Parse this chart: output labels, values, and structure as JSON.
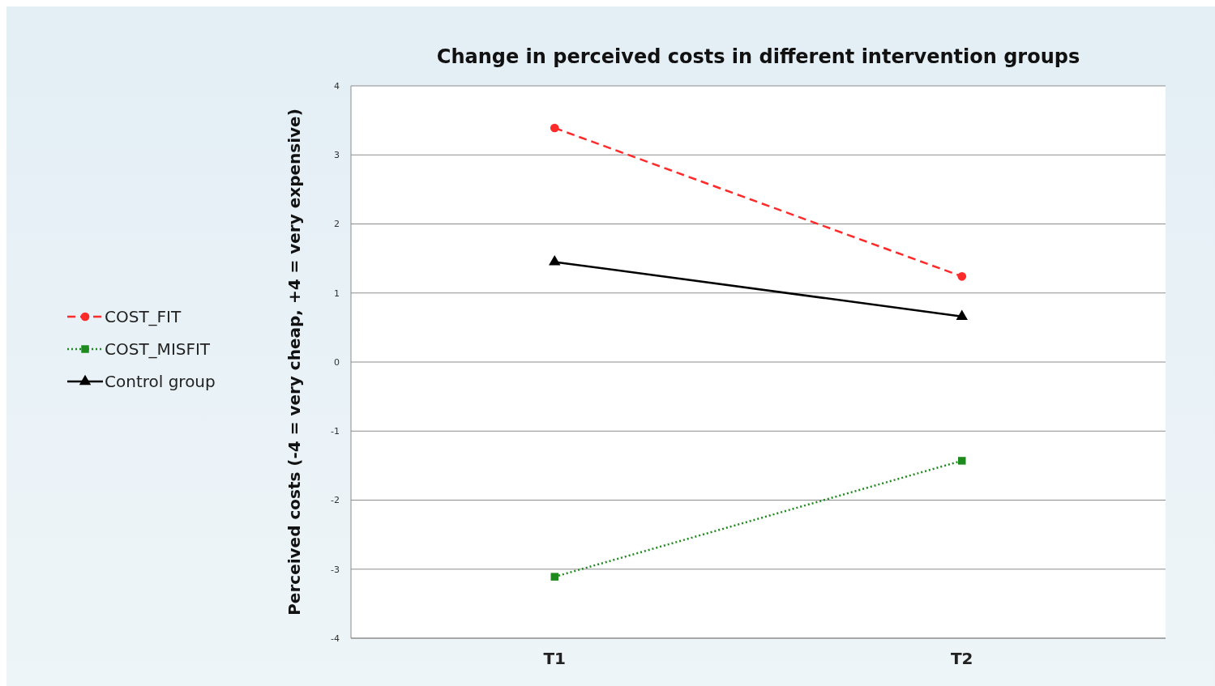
{
  "chart_data": {
    "type": "line",
    "title": "Change in perceived costs in different intervention groups",
    "ylabel": "Perceived costs (-4 = very cheap, +4 = very expensive)",
    "categories": [
      "T1",
      "T2"
    ],
    "ylim": [
      -4,
      4
    ],
    "yticks": [
      -4,
      -3,
      -2,
      -1,
      0,
      1,
      2,
      3,
      4
    ],
    "grid": "y",
    "legend": "left",
    "series": [
      {
        "name": "COST_FIT",
        "color": "#ff2a2a",
        "values": [
          3.39,
          1.24
        ],
        "marker": "circle",
        "line_style": "dashed"
      },
      {
        "name": "COST_MISFIT",
        "color": "#1e8a1e",
        "values": [
          -3.11,
          -1.43
        ],
        "marker": "square",
        "line_style": "dotted"
      },
      {
        "name": "Control group",
        "color": "#000000",
        "values": [
          1.45,
          0.66
        ],
        "marker": "triangle",
        "line_style": "solid"
      }
    ]
  }
}
